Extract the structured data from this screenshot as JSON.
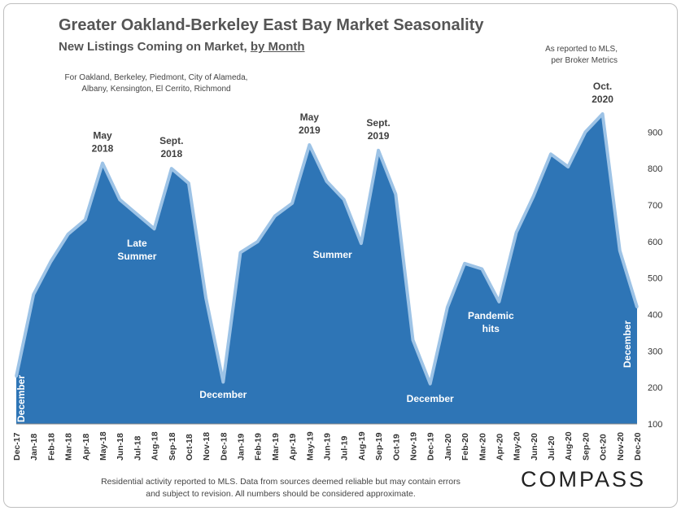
{
  "title": "Greater Oakland-Berkeley East Bay Market Seasonality",
  "subtitle_main": "New Listings Coming on Market,",
  "subtitle_link": "by Month",
  "source_note": [
    "As reported to MLS,",
    "per Broker Metrics"
  ],
  "cities_note": [
    "For Oakland, Berkeley, Piedmont, City of Alameda,",
    "Albany, Kensington, El Cerrito, Richmond"
  ],
  "footer_note": [
    "Residential activity reported to MLS. Data from sources deemed reliable but may contain errors",
    "and subject to revision. All numbers should be considered approximate."
  ],
  "logo": "COMPASS",
  "colors": {
    "area_fill": "#2e75b6",
    "area_stroke": "#9dc3e6",
    "text_dark": "#404040",
    "text_light": "#ffffff"
  },
  "chart_data": {
    "type": "area",
    "categories": [
      "Dec-17",
      "Jan-18",
      "Feb-18",
      "Mar-18",
      "Apr-18",
      "May-18",
      "Jun-18",
      "Jul-18",
      "Aug-18",
      "Sep-18",
      "Oct-18",
      "Nov-18",
      "Dec-18",
      "Jan-19",
      "Feb-19",
      "Mar-19",
      "Apr-19",
      "May-19",
      "Jun-19",
      "Jul-19",
      "Aug-19",
      "Sep-19",
      "Oct-19",
      "Nov-19",
      "Dec-19",
      "Jan-20",
      "Feb-20",
      "Mar-20",
      "Apr-20",
      "May-20",
      "Jun-20",
      "Jul-20",
      "Aug-20",
      "Sep-20",
      "Oct-20",
      "Nov-20",
      "Dec-20"
    ],
    "values": [
      230,
      455,
      545,
      620,
      660,
      815,
      715,
      675,
      635,
      800,
      760,
      445,
      215,
      570,
      600,
      670,
      705,
      865,
      765,
      715,
      595,
      850,
      730,
      330,
      210,
      420,
      540,
      525,
      435,
      625,
      725,
      840,
      805,
      900,
      950,
      575,
      420
    ],
    "ylim": [
      100,
      950
    ],
    "yticks": [
      100,
      200,
      300,
      400,
      500,
      600,
      700,
      800,
      900
    ],
    "annotations": [
      {
        "lines": [
          "December"
        ],
        "style": "light-vertical",
        "category": "Dec-17"
      },
      {
        "lines": [
          "May",
          "2018"
        ],
        "style": "dark",
        "category": "May-18"
      },
      {
        "lines": [
          "Sept.",
          "2018"
        ],
        "style": "dark",
        "category": "Sep-18"
      },
      {
        "lines": [
          "Late",
          "Summer"
        ],
        "style": "light",
        "category": "Jul-18"
      },
      {
        "lines": [
          "December"
        ],
        "style": "light",
        "category": "Dec-18"
      },
      {
        "lines": [
          "May",
          "2019"
        ],
        "style": "dark",
        "category": "May-19"
      },
      {
        "lines": [
          "Summer"
        ],
        "style": "light",
        "category": "Jul-19"
      },
      {
        "lines": [
          "Sept.",
          "2019"
        ],
        "style": "dark",
        "category": "Sep-19"
      },
      {
        "lines": [
          "December"
        ],
        "style": "light",
        "category": "Dec-19"
      },
      {
        "lines": [
          "Pandemic",
          "hits"
        ],
        "style": "light",
        "category": "Mar-20"
      },
      {
        "lines": [
          "Oct.",
          "2020"
        ],
        "style": "dark",
        "category": "Oct-20"
      },
      {
        "lines": [
          "December"
        ],
        "style": "light-vertical",
        "category": "Dec-20"
      }
    ]
  }
}
